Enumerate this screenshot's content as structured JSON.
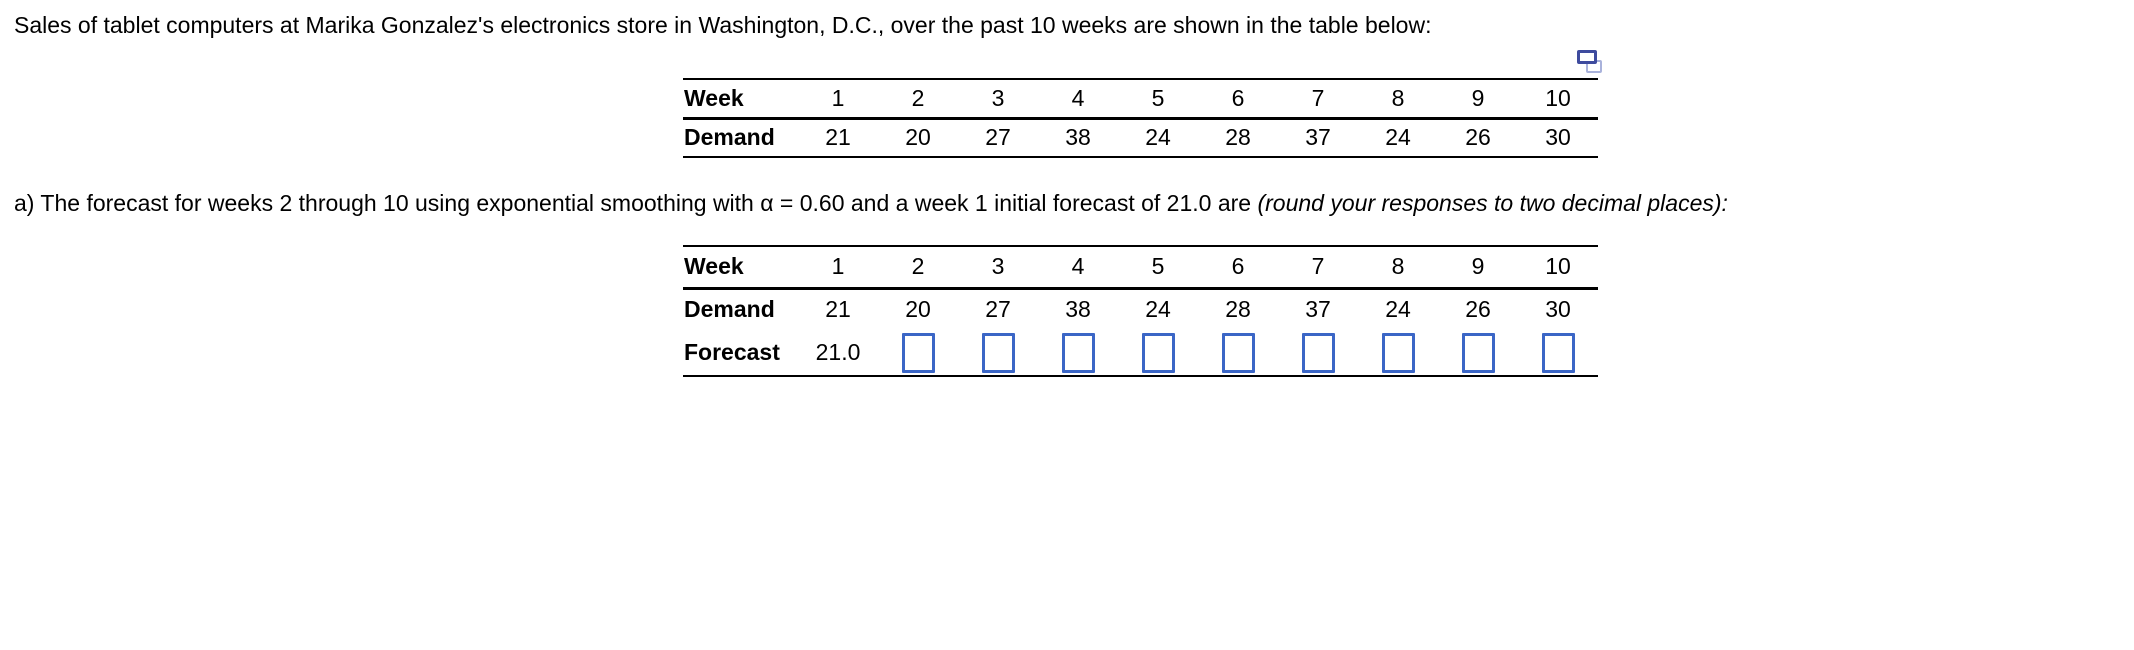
{
  "intro": {
    "text": "Sales of tablet computers at Marika Gonzalez's electronics store in Washington, D.C., over the past 10 weeks are shown in the table below:"
  },
  "icons": {
    "popout_window": "two-overlapping-windows"
  },
  "demand_table": {
    "week_label": "Week",
    "demand_label": "Demand",
    "weeks": [
      "1",
      "2",
      "3",
      "4",
      "5",
      "6",
      "7",
      "8",
      "9",
      "10"
    ],
    "demand": [
      "21",
      "20",
      "27",
      "38",
      "24",
      "28",
      "37",
      "24",
      "26",
      "30"
    ]
  },
  "question": {
    "prefix": "a) The forecast for weeks 2 through 10 using exponential smoothing with α = 0.60 and a week 1 initial forecast of 21.0 are ",
    "italic": "(round your responses to two decimal places):"
  },
  "forecast_table": {
    "week_label": "Week",
    "demand_label": "Demand",
    "forecast_label": "Forecast",
    "weeks": [
      "1",
      "2",
      "3",
      "4",
      "5",
      "6",
      "7",
      "8",
      "9",
      "10"
    ],
    "demand": [
      "21",
      "20",
      "27",
      "38",
      "24",
      "28",
      "37",
      "24",
      "26",
      "30"
    ],
    "forecast_initial": "21.0",
    "input_values": [
      "",
      "",
      "",
      "",
      "",
      "",
      "",
      "",
      ""
    ]
  },
  "colors": {
    "input_border": "#3b66c6",
    "icon_front_border": "#3e4b9e",
    "icon_back_border": "#a9b2db",
    "table_lines": "#000000",
    "text": "#000000",
    "background": "#ffffff"
  }
}
